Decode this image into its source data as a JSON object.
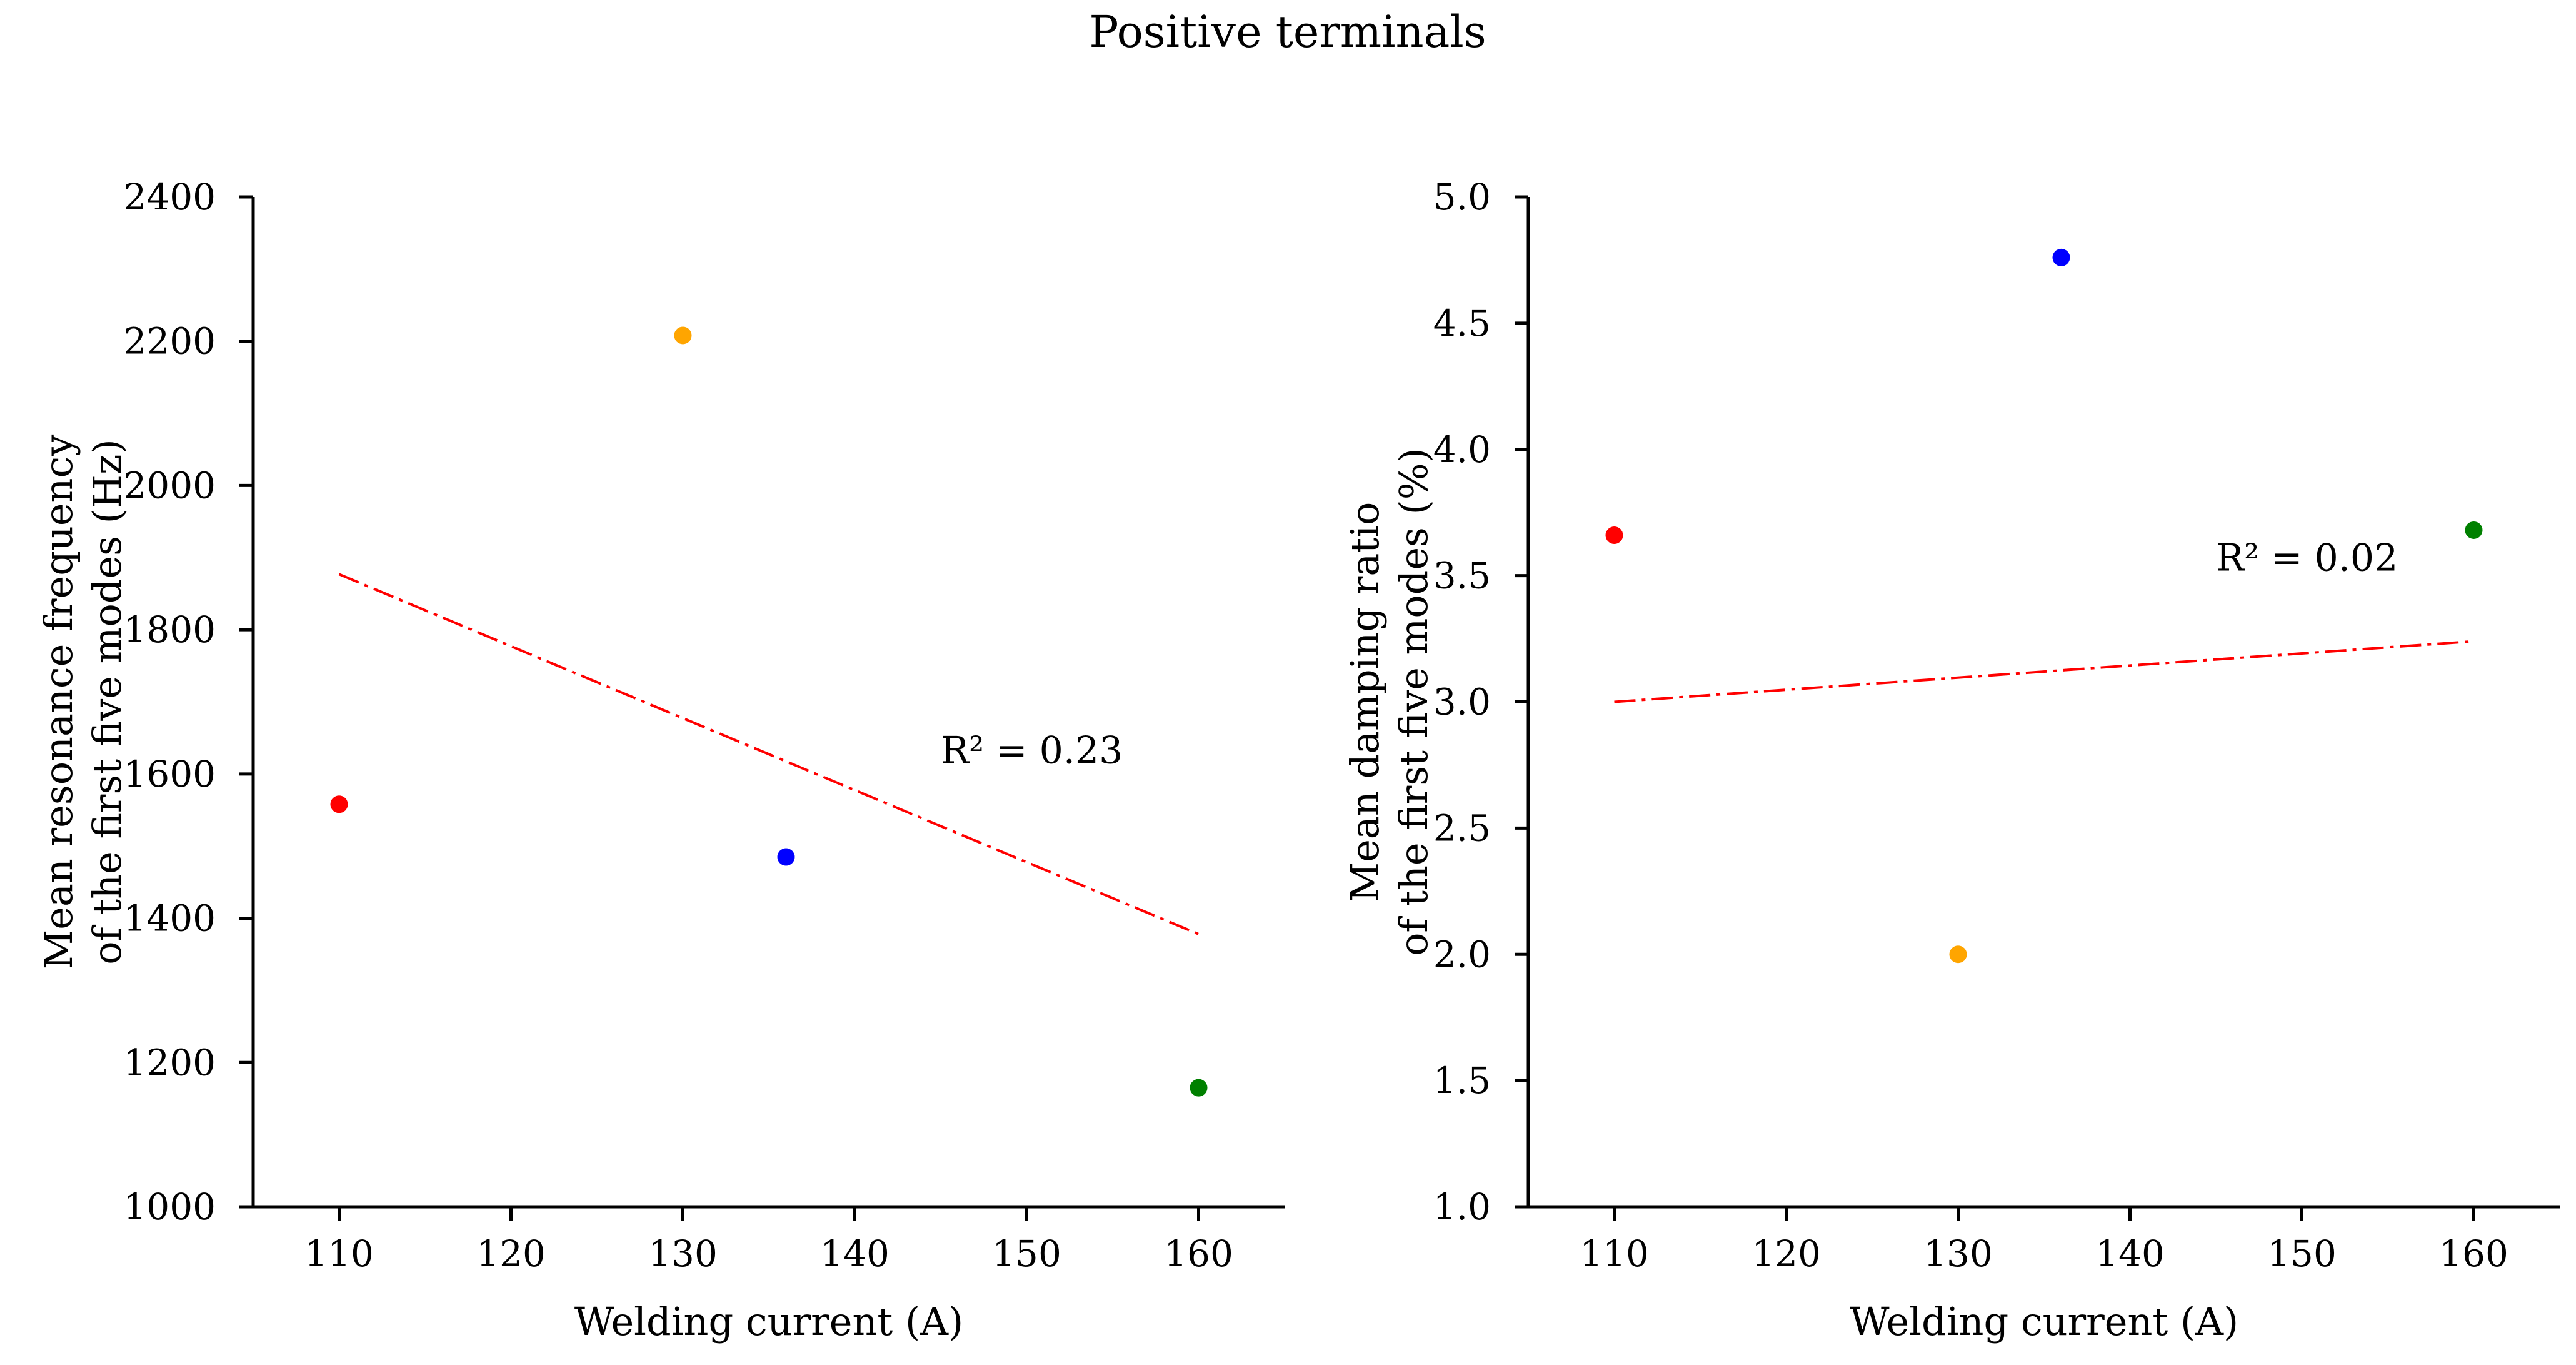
{
  "figure": {
    "title": "Positive terminals"
  },
  "chart_data": [
    {
      "type": "scatter",
      "title": "",
      "xlabel": "Welding current (A)",
      "ylabel_lines": [
        "Mean resonance frequency",
        "of the first five modes (Hz)"
      ],
      "xlim": [
        105,
        165
      ],
      "ylim": [
        1000,
        2400
      ],
      "xticks": [
        110,
        120,
        130,
        140,
        150,
        160
      ],
      "yticks": [
        1000,
        1200,
        1400,
        1600,
        1800,
        2000,
        2200,
        2400
      ],
      "ytick_labels": [
        "1000",
        "1200",
        "1400",
        "1600",
        "1800",
        "2000",
        "2200",
        "2400"
      ],
      "points": [
        {
          "x": 110,
          "y": 1558,
          "color": "#ff0000"
        },
        {
          "x": 130,
          "y": 2208,
          "color": "#ffa500"
        },
        {
          "x": 136,
          "y": 1485,
          "color": "#0000ff"
        },
        {
          "x": 160,
          "y": 1165,
          "color": "#008000"
        }
      ],
      "fit_line": {
        "x": [
          110,
          160
        ],
        "y": [
          1877,
          1378
        ],
        "color": "#ff0000",
        "style": "dashdot"
      },
      "annotation": {
        "text": "R² = 0.23",
        "x": 145,
        "y": 1615
      }
    },
    {
      "type": "scatter",
      "title": "",
      "xlabel": "Welding current (A)",
      "ylabel_lines": [
        "Mean damping ratio",
        "of the first five modes (%)"
      ],
      "xlim": [
        105,
        165
      ],
      "ylim": [
        1.0,
        5.0
      ],
      "xticks": [
        110,
        120,
        130,
        140,
        150,
        160
      ],
      "yticks": [
        1.0,
        1.5,
        2.0,
        2.5,
        3.0,
        3.5,
        4.0,
        4.5,
        5.0
      ],
      "ytick_labels": [
        "1.0",
        "1.5",
        "2.0",
        "2.5",
        "3.0",
        "3.5",
        "4.0",
        "4.5",
        "5.0"
      ],
      "points": [
        {
          "x": 110,
          "y": 3.66,
          "color": "#ff0000"
        },
        {
          "x": 130,
          "y": 2.0,
          "color": "#ffa500"
        },
        {
          "x": 136,
          "y": 4.76,
          "color": "#0000ff"
        },
        {
          "x": 160,
          "y": 3.68,
          "color": "#008000"
        }
      ],
      "fit_line": {
        "x": [
          110,
          160
        ],
        "y": [
          3.0,
          3.24
        ],
        "color": "#ff0000",
        "style": "dashdot"
      },
      "annotation": {
        "text": "R² = 0.02",
        "x": 145,
        "y": 3.52
      }
    }
  ]
}
